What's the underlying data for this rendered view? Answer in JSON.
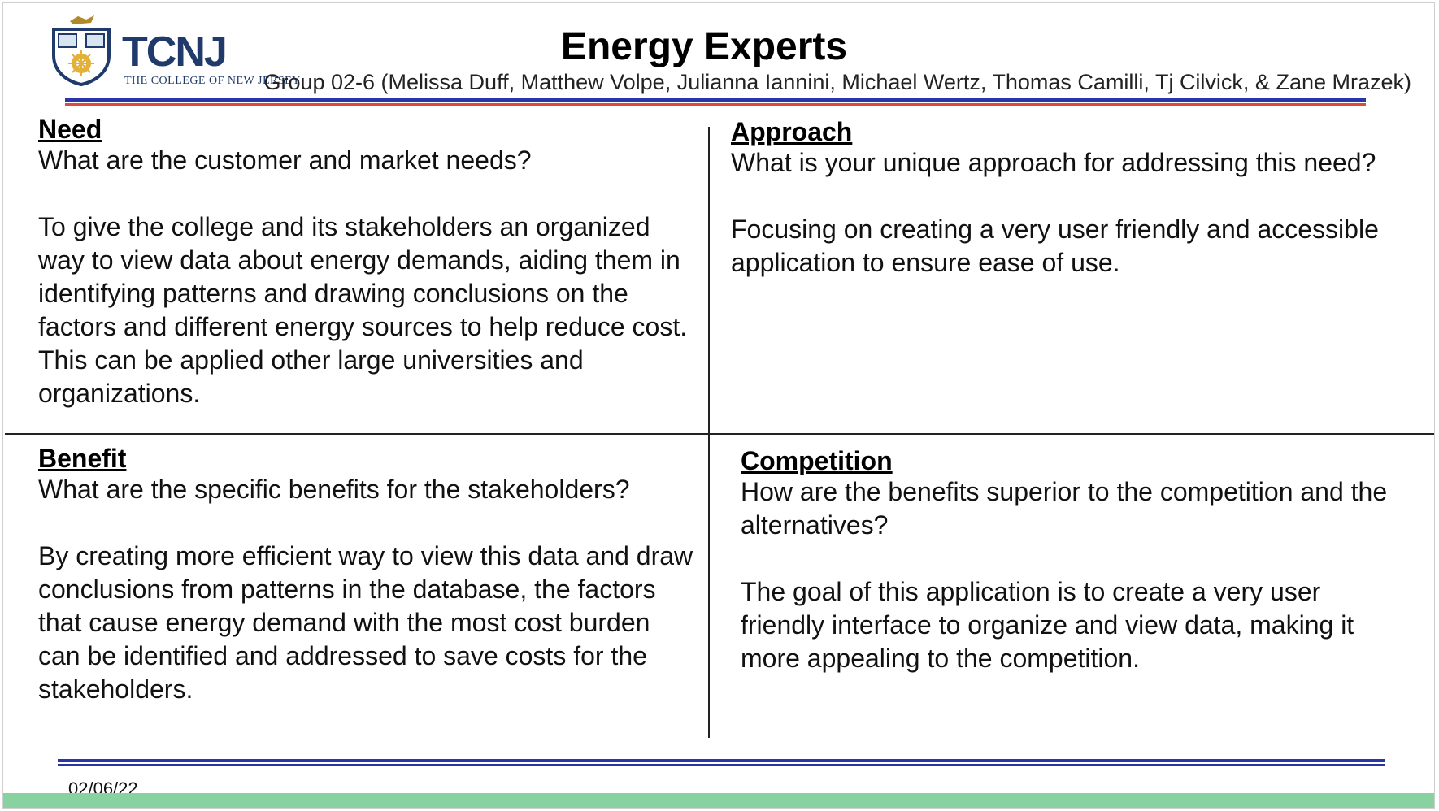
{
  "header": {
    "logo_text": "TCNJ",
    "logo_subtext": "THE COLLEGE OF NEW JERSEY",
    "title": "Energy Experts",
    "members": "Group 02-6 (Melissa Duff, Matthew Volpe, Julianna Iannini, Michael Wertz, Thomas Camilli, Tj Cilvick, & Zane Mrazek)"
  },
  "need": {
    "heading": "Need",
    "question": "What are the customer and market needs?",
    "answer": "To give the college and its stakeholders an organized way to view data about energy demands, aiding them in identifying patterns and drawing conclusions on the factors and different energy sources to help reduce cost. This can be applied other large universities and organizations."
  },
  "approach": {
    "heading": "Approach",
    "question": "What is your unique approach for addressing this need?",
    "answer": "Focusing on creating a very user friendly and accessible application to ensure ease of use."
  },
  "benefit": {
    "heading": "Benefit",
    "question": "What are the specific benefits for the stakeholders?",
    "answer": "By creating more efficient way to view this data and draw conclusions from patterns in the database, the factors that cause energy demand with the most cost burden can be identified and addressed to save costs for the stakeholders."
  },
  "competition": {
    "heading": "Competition",
    "question": "How are the benefits superior to the competition and the alternatives?",
    "answer": "The goal of this application is to create a very user friendly interface to organize and view data, making it more appealing to the competition."
  },
  "footer": {
    "date": "02/06/22"
  },
  "colors": {
    "brand_blue": "#1f3a6b",
    "rule_blue": "#2a36a8",
    "rule_red": "#e0473d",
    "footer_green": "#88d1a0"
  },
  "icons": {
    "logo": "tcnj-crest-icon"
  }
}
